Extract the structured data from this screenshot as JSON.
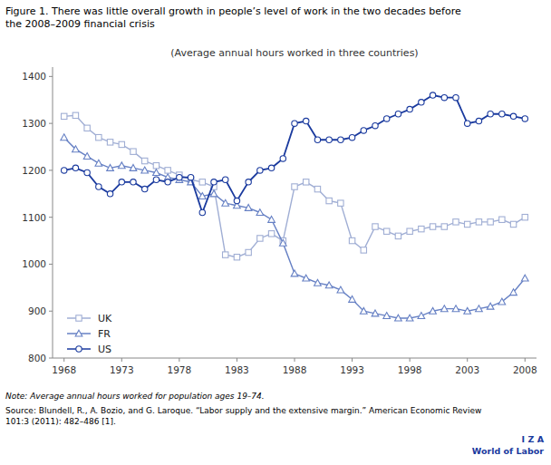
{
  "chart_data": {
    "type": "line",
    "title": [
      "Figure 1. There was little overall growth in people’s level of work in the two decades before",
      "the 2008–2009 financial crisis"
    ],
    "subtitle": "(Average annual hours worked in three countries)",
    "note": "Note: Average annual hours worked for population ages 19–74.",
    "source": [
      "Source: Blundell, R., A. Bozio, and G. Laroque. “Labor supply and the extensive margin.” American Economic Review",
      "101:3 (2011): 482–486 [1]."
    ],
    "annotations": [
      "I Z A",
      "World of Labor"
    ],
    "x": [
      1968,
      1969,
      1970,
      1971,
      1972,
      1973,
      1974,
      1975,
      1976,
      1977,
      1978,
      1979,
      1980,
      1981,
      1982,
      1983,
      1984,
      1985,
      1986,
      1987,
      1988,
      1989,
      1990,
      1991,
      1992,
      1993,
      1994,
      1995,
      1996,
      1997,
      1998,
      1999,
      2000,
      2001,
      2002,
      2003,
      2004,
      2005,
      2006,
      2007,
      2008
    ],
    "series": [
      {
        "name": "UK",
        "color": "#a0aed4",
        "marker": "square",
        "values": [
          1315,
          1317,
          1290,
          1270,
          1260,
          1255,
          1240,
          1220,
          1210,
          1200,
          1190,
          1180,
          1175,
          1165,
          1020,
          1015,
          1025,
          1055,
          1065,
          1050,
          1165,
          1175,
          1160,
          1135,
          1130,
          1050,
          1030,
          1080,
          1070,
          1060,
          1070,
          1075,
          1080,
          1080,
          1090,
          1085,
          1090,
          1090,
          1095,
          1085,
          1100
        ]
      },
      {
        "name": "FR",
        "color": "#6680c4",
        "marker": "triangle",
        "values": [
          1270,
          1245,
          1230,
          1215,
          1205,
          1210,
          1205,
          1200,
          1195,
          1185,
          1180,
          1175,
          1145,
          1150,
          1130,
          1125,
          1120,
          1110,
          1095,
          1045,
          980,
          970,
          960,
          955,
          945,
          925,
          900,
          895,
          890,
          885,
          885,
          890,
          900,
          905,
          905,
          900,
          905,
          910,
          920,
          940,
          970
        ]
      },
      {
        "name": "US",
        "color": "#1a3a9e",
        "marker": "circle",
        "values": [
          1200,
          1205,
          1195,
          1165,
          1150,
          1175,
          1175,
          1160,
          1180,
          1175,
          1185,
          1185,
          1110,
          1175,
          1180,
          1135,
          1175,
          1200,
          1205,
          1225,
          1300,
          1305,
          1265,
          1265,
          1265,
          1270,
          1285,
          1295,
          1310,
          1320,
          1330,
          1345,
          1360,
          1355,
          1355,
          1300,
          1305,
          1320,
          1320,
          1315,
          1310
        ]
      }
    ],
    "xlim": [
      1967,
      2009
    ],
    "xticks": [
      1968,
      1973,
      1978,
      1983,
      1988,
      1993,
      1998,
      2003,
      2008
    ],
    "ylim": [
      800,
      1420
    ],
    "yticks": [
      800,
      900,
      1000,
      1100,
      1200,
      1300,
      1400
    ],
    "grid": false,
    "legend": "lower left"
  }
}
